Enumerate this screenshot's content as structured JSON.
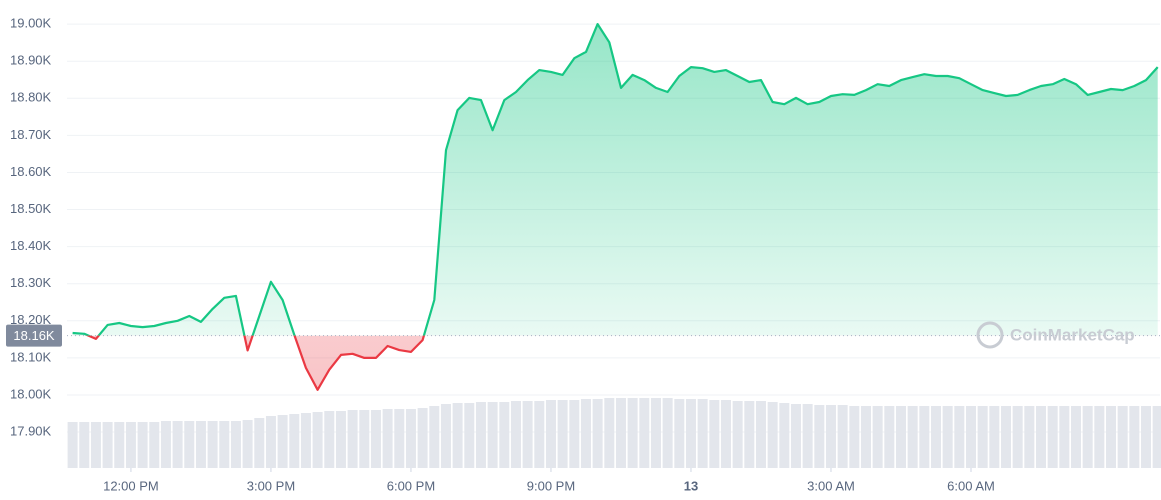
{
  "chart_data": {
    "type": "line",
    "x": [
      10.75,
      11,
      11.25,
      11.5,
      11.75,
      12,
      12.25,
      12.5,
      12.75,
      13,
      13.25,
      13.5,
      13.75,
      14,
      14.25,
      14.5,
      14.75,
      15,
      15.25,
      15.5,
      15.75,
      16,
      16.25,
      16.5,
      16.75,
      17,
      17.25,
      17.5,
      17.75,
      18,
      18.25,
      18.5,
      18.75,
      19,
      19.25,
      19.5,
      19.75,
      20,
      20.25,
      20.5,
      20.75,
      21,
      21.25,
      21.5,
      21.75,
      22,
      22.25,
      22.5,
      22.75,
      23,
      23.25,
      23.5,
      23.75,
      24,
      24.25,
      24.5,
      24.75,
      25,
      25.25,
      25.5,
      25.75,
      26,
      26.25,
      26.5,
      26.75,
      27,
      27.25,
      27.5,
      27.75,
      28,
      28.25,
      28.5,
      28.75,
      29,
      29.25,
      29.5,
      29.75,
      30,
      30.25,
      30.5,
      30.75,
      31,
      31.25,
      31.5,
      31.75,
      32,
      32.25,
      32.5,
      32.75,
      33,
      33.25,
      33.5,
      33.75,
      34
    ],
    "values": [
      18167,
      18165,
      18151,
      18189,
      18194,
      18186,
      18183,
      18186,
      18194,
      18200,
      18213,
      18197,
      18232,
      18262,
      18267,
      18120,
      18213,
      18305,
      18256,
      18162,
      18073,
      18014,
      18068,
      18108,
      18111,
      18100,
      18100,
      18132,
      18121,
      18116,
      18148,
      18256,
      18660,
      18768,
      18801,
      18795,
      18714,
      18795,
      18817,
      18849,
      18876,
      18871,
      18863,
      18908,
      18925,
      19000,
      18951,
      18828,
      18863,
      18849,
      18828,
      18817,
      18860,
      18884,
      18881,
      18871,
      18876,
      18860,
      18844,
      18849,
      18790,
      18784,
      18801,
      18784,
      18790,
      18806,
      18811,
      18809,
      18822,
      18838,
      18833,
      18849,
      18857,
      18865,
      18860,
      18860,
      18854,
      18838,
      18822,
      18814,
      18806,
      18809,
      18822,
      18833,
      18838,
      18852,
      18838,
      18809,
      18817,
      18825,
      18822,
      18833,
      18849,
      18884
    ],
    "volume": [
      46,
      46,
      46,
      46,
      46,
      46,
      46,
      46,
      47,
      47,
      47,
      47,
      47,
      47,
      47,
      48,
      50,
      52,
      53,
      54,
      55,
      56,
      57,
      57,
      58,
      58,
      58,
      59,
      59,
      59,
      60,
      62,
      64,
      65,
      65,
      66,
      66,
      66,
      67,
      67,
      67,
      68,
      68,
      68,
      69,
      69,
      70,
      70,
      70,
      70,
      70,
      70,
      69,
      69,
      69,
      68,
      68,
      67,
      67,
      67,
      66,
      65,
      64,
      64,
      63,
      63,
      63,
      62,
      62,
      62,
      62,
      62,
      62,
      62,
      62,
      62,
      62,
      62,
      62,
      62,
      62,
      62,
      62,
      62,
      62,
      62,
      62,
      62,
      62,
      62,
      62,
      62,
      62,
      62
    ],
    "volume_lim": [
      0,
      468
    ],
    "up_color": "#16c784",
    "down_color": "#ea3943",
    "baseline": {
      "value": 18160,
      "label": "18.16K"
    },
    "xlim": [
      10.63,
      34.05
    ],
    "ylim": [
      17803,
      19065
    ],
    "xticks": [
      {
        "value": 12,
        "label": "12:00 PM"
      },
      {
        "value": 15,
        "label": "3:00 PM"
      },
      {
        "value": 18,
        "label": "6:00 PM"
      },
      {
        "value": 21,
        "label": "9:00 PM"
      },
      {
        "value": 24,
        "label": "13"
      },
      {
        "value": 27,
        "label": "3:00 AM"
      },
      {
        "value": 30,
        "label": "6:00 AM"
      }
    ],
    "yticks": [
      {
        "value": 17900,
        "label": "17.90K"
      },
      {
        "value": 18000,
        "label": "18.00K"
      },
      {
        "value": 18100,
        "label": "18.10K"
      },
      {
        "value": 18200,
        "label": "18.20K"
      },
      {
        "value": 18300,
        "label": "18.30K"
      },
      {
        "value": 18400,
        "label": "18.40K"
      },
      {
        "value": 18500,
        "label": "18.50K"
      },
      {
        "value": 18600,
        "label": "18.60K"
      },
      {
        "value": 18700,
        "label": "18.70K"
      },
      {
        "value": 18800,
        "label": "18.80K"
      },
      {
        "value": 18900,
        "label": "18.90K"
      },
      {
        "value": 19000,
        "label": "19.00K"
      }
    ],
    "grid": true,
    "watermark": "CoinMarketCap"
  }
}
